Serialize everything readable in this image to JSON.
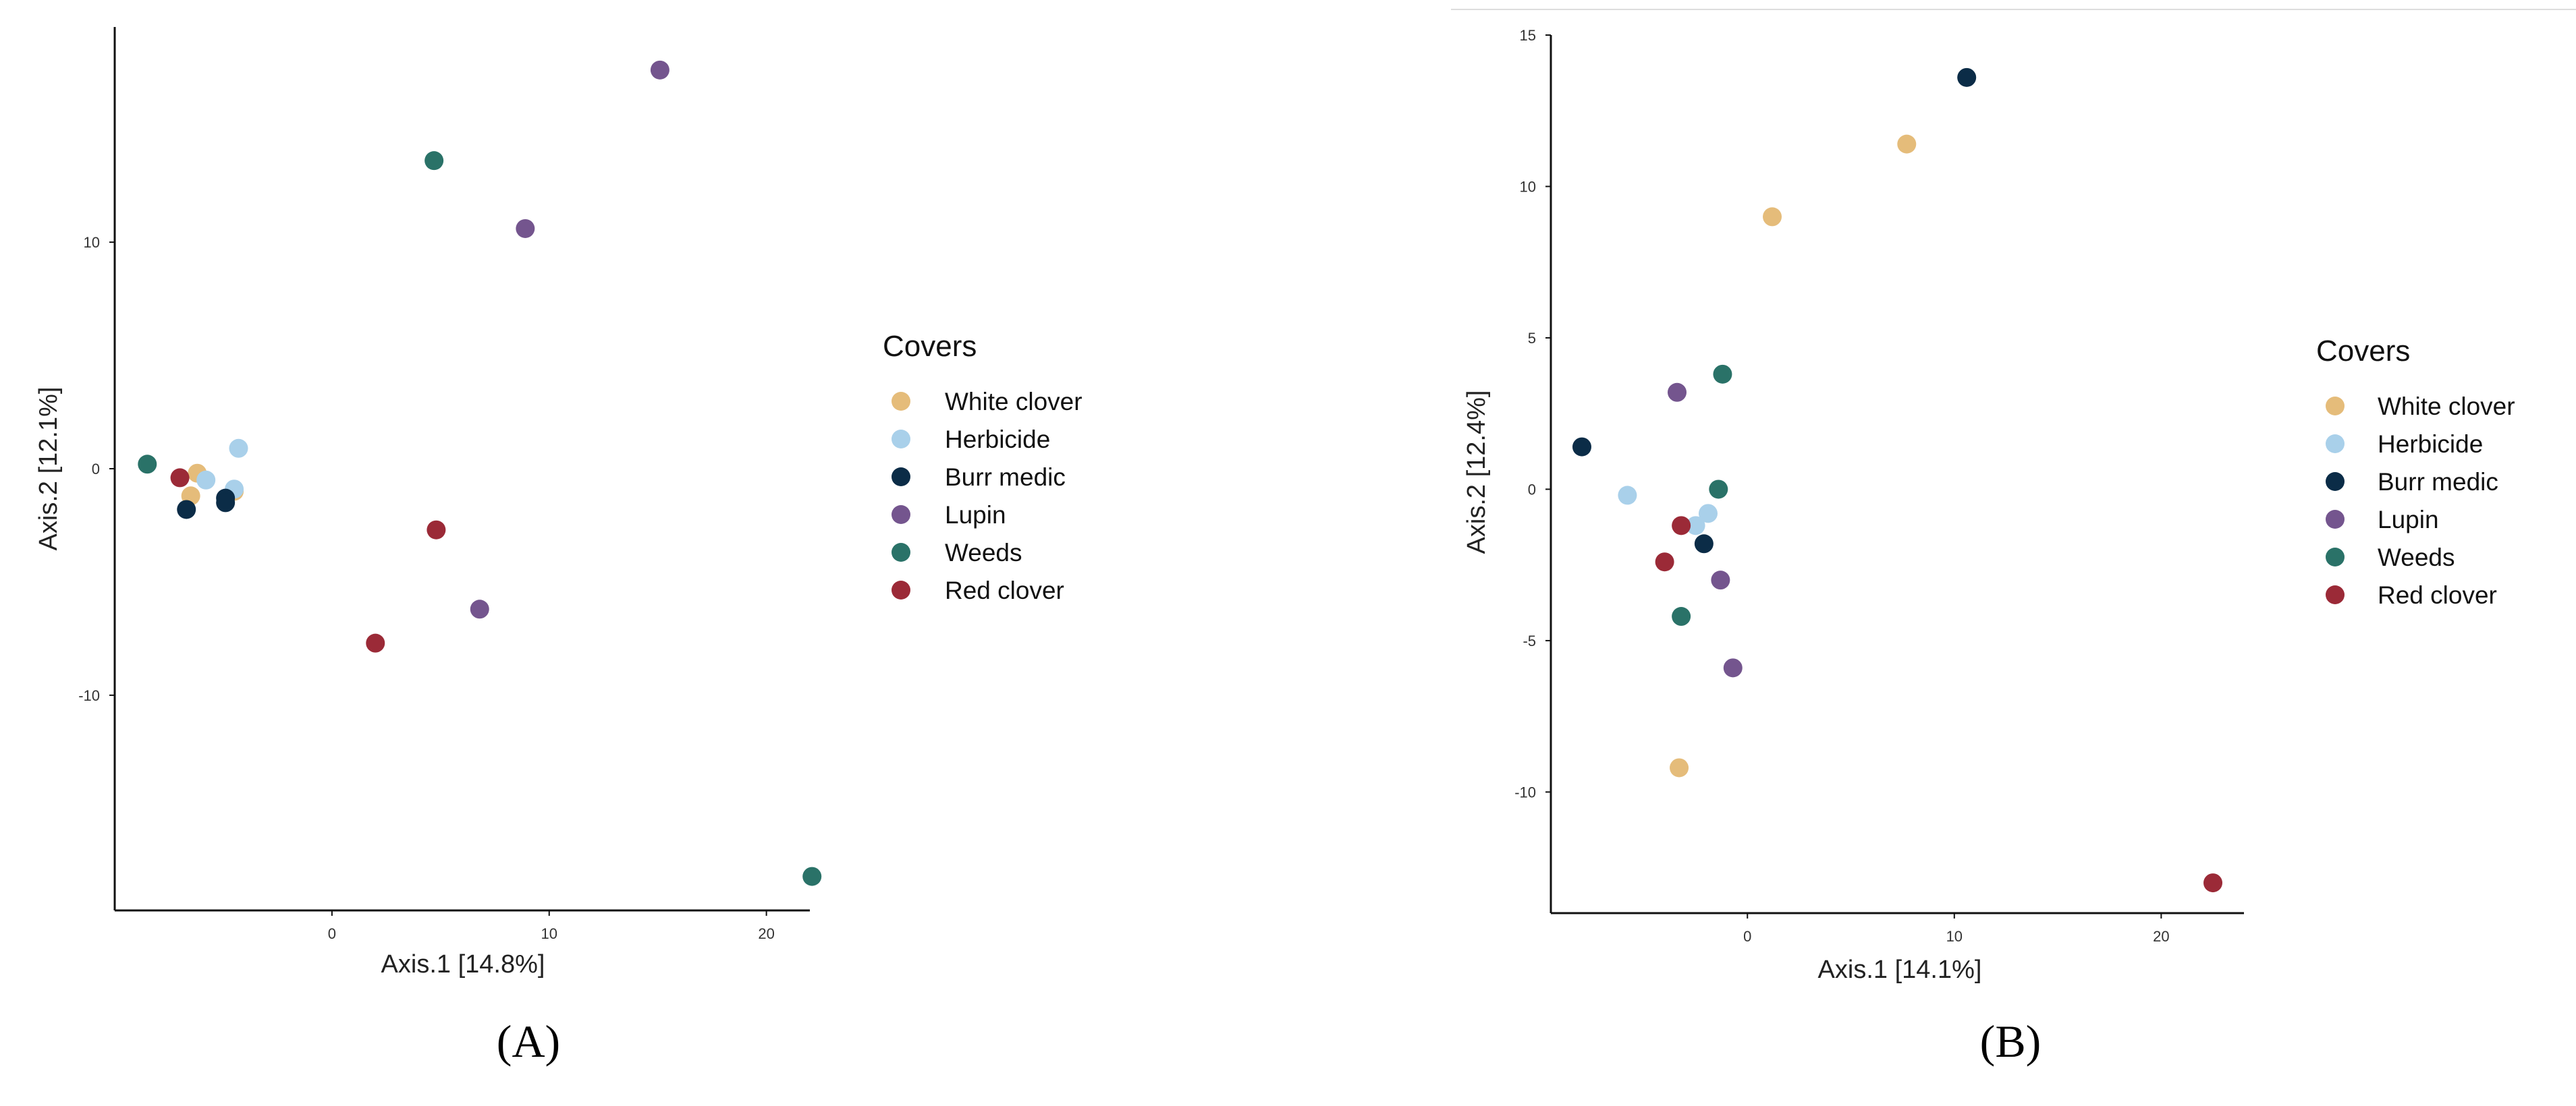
{
  "chart_data": [
    {
      "type": "scatter",
      "panel_label": "(A)",
      "xlabel": "Axis.1   [14.8%]",
      "ylabel": "Axis.2   [12.1%]",
      "xlim": [
        -10,
        22
      ],
      "ylim": [
        -19.5,
        19.5
      ],
      "xticks": [
        0,
        10,
        20
      ],
      "yticks": [
        10,
        0,
        -10
      ],
      "legend_title": "Covers",
      "series": [
        {
          "name": "White clover",
          "color": "#E5BC7A",
          "x": [
            -6.5,
            -6.2,
            -4.5
          ],
          "y": [
            -1.2,
            -0.2,
            -1.0
          ]
        },
        {
          "name": "Herbicide",
          "color": "#A9D0EA",
          "x": [
            -5.8,
            -4.3,
            -4.5
          ],
          "y": [
            -0.5,
            0.9,
            -0.9
          ]
        },
        {
          "name": "Burr medic",
          "color": "#0B2C47",
          "x": [
            -6.7,
            -4.9,
            -4.9
          ],
          "y": [
            -1.8,
            -1.3,
            -1.5
          ]
        },
        {
          "name": "Lupin",
          "color": "#74558E",
          "x": [
            15.1,
            8.9,
            6.8
          ],
          "y": [
            17.6,
            10.6,
            -6.2
          ]
        },
        {
          "name": "Weeds",
          "color": "#2A7268",
          "x": [
            -8.5,
            4.7,
            22.1
          ],
          "y": [
            0.2,
            13.6,
            -18.0
          ]
        },
        {
          "name": "Red clover",
          "color": "#9B2A37",
          "x": [
            -7.0,
            4.8,
            2.0
          ],
          "y": [
            -0.4,
            -2.7,
            -7.7
          ]
        }
      ]
    },
    {
      "type": "scatter",
      "panel_label": "(B)",
      "xlabel": "Axis.1   [14.1%]",
      "ylabel": "Axis.2   [12.4%]",
      "xlim": [
        -9.5,
        24
      ],
      "ylim": [
        -14,
        15
      ],
      "xticks": [
        0,
        10,
        20
      ],
      "yticks": [
        15,
        10,
        5,
        0,
        -5,
        -10
      ],
      "legend_title": "Covers",
      "series": [
        {
          "name": "White clover",
          "color": "#E5BC7A",
          "x": [
            1.2,
            7.7,
            -3.3
          ],
          "y": [
            9.0,
            11.4,
            -9.2
          ]
        },
        {
          "name": "Herbicide",
          "color": "#A9D0EA",
          "x": [
            -5.8,
            -2.5,
            -1.9
          ],
          "y": [
            -0.2,
            -1.2,
            -0.8
          ]
        },
        {
          "name": "Burr medic",
          "color": "#0B2C47",
          "x": [
            10.6,
            -8.0,
            -2.1
          ],
          "y": [
            13.6,
            1.4,
            -1.8
          ]
        },
        {
          "name": "Lupin",
          "color": "#74558E",
          "x": [
            -3.4,
            -1.3,
            -0.7
          ],
          "y": [
            3.2,
            -3.0,
            -5.9
          ]
        },
        {
          "name": "Weeds",
          "color": "#2A7268",
          "x": [
            -1.2,
            -1.4,
            -3.2
          ],
          "y": [
            3.8,
            0.0,
            -4.2
          ]
        },
        {
          "name": "Red clover",
          "color": "#9B2A37",
          "x": [
            -3.2,
            -4.0,
            22.5
          ],
          "y": [
            -1.2,
            -2.4,
            -13.0
          ]
        }
      ]
    }
  ]
}
